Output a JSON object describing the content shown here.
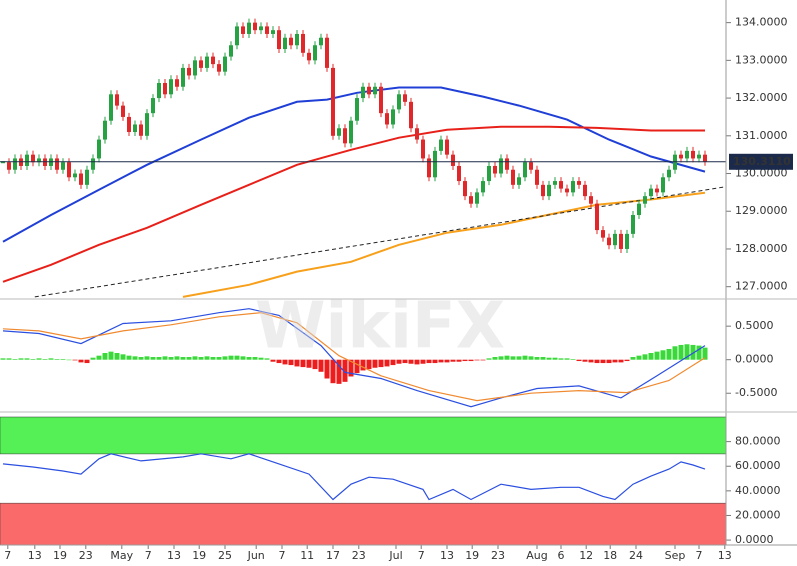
{
  "watermark": "WikiFX",
  "chart_data": [
    {
      "type": "candlestick",
      "xlim": [
        -0.5,
        120.5
      ],
      "ylim": [
        126.7,
        134.6
      ],
      "up_color": "#26a243",
      "down_color": "#e0282a",
      "close": [
        130.3,
        130.1,
        130.4,
        130.2,
        130.5,
        130.3,
        130.4,
        130.2,
        130.4,
        130.1,
        130.3,
        129.9,
        130.0,
        129.7,
        130.1,
        130.4,
        130.9,
        131.4,
        132.1,
        131.8,
        131.5,
        131.1,
        131.3,
        131.0,
        131.6,
        132.0,
        132.4,
        132.1,
        132.5,
        132.3,
        132.8,
        132.6,
        133.0,
        132.8,
        133.1,
        132.9,
        132.7,
        133.1,
        133.4,
        133.9,
        133.7,
        134.0,
        133.8,
        133.9,
        133.7,
        133.8,
        133.3,
        133.6,
        133.4,
        133.7,
        133.2,
        133.0,
        133.4,
        133.6,
        132.8,
        131.0,
        131.2,
        130.8,
        131.4,
        132.0,
        132.3,
        132.1,
        132.3,
        131.6,
        131.3,
        131.7,
        132.1,
        131.9,
        131.2,
        130.9,
        130.4,
        129.9,
        130.6,
        130.9,
        130.5,
        130.2,
        129.8,
        129.4,
        129.2,
        129.5,
        129.8,
        130.2,
        130.0,
        130.4,
        130.1,
        129.7,
        129.9,
        130.3,
        130.1,
        129.7,
        129.4,
        129.7,
        129.8,
        129.6,
        129.5,
        129.8,
        129.7,
        129.4,
        129.2,
        128.5,
        128.3,
        128.1,
        128.4,
        128.0,
        128.4,
        128.9,
        129.2,
        129.4,
        129.6,
        129.5,
        129.9,
        130.1,
        130.5,
        130.4,
        130.6,
        130.4,
        130.5,
        130.311
      ],
      "series": [
        {
          "color": "#1f3fd6",
          "x": [
            0,
            8,
            16,
            24,
            33,
            41,
            49,
            54,
            59,
            66,
            73,
            80,
            86,
            94,
            101,
            108,
            117
          ],
          "values": [
            128.19,
            128.9,
            129.57,
            130.23,
            130.9,
            131.48,
            131.9,
            131.96,
            132.14,
            132.28,
            132.28,
            132.04,
            131.8,
            131.43,
            130.9,
            130.45,
            130.05
          ]
        },
        {
          "color": "#e8201a",
          "x": [
            0,
            8,
            16,
            24,
            33,
            41,
            49,
            58,
            66,
            74,
            83,
            91,
            99,
            108,
            117
          ],
          "values": [
            127.13,
            127.58,
            128.11,
            128.56,
            129.17,
            129.7,
            130.23,
            130.63,
            130.95,
            131.16,
            131.24,
            131.24,
            131.21,
            131.14,
            131.14
          ]
        },
        {
          "color": "#f7a01b",
          "x": [
            30,
            41,
            49,
            58,
            66,
            74,
            83,
            91,
            99,
            108,
            117
          ],
          "values": [
            126.73,
            127.05,
            127.4,
            127.66,
            128.11,
            128.43,
            128.64,
            128.91,
            129.17,
            129.31,
            129.49
          ]
        }
      ],
      "trendline": {
        "x": [
          5.3,
          120.5
        ],
        "values": [
          126.73,
          129.65
        ]
      },
      "price_marker": {
        "value": 130.311,
        "label": "130.3110"
      },
      "yticks": [
        {
          "value": 134,
          "label": "134.0000"
        },
        {
          "value": 133,
          "label": "133.0000"
        },
        {
          "value": 132,
          "label": "132.0000"
        },
        {
          "value": 131,
          "label": "131.0000"
        },
        {
          "value": 130,
          "label": "130.0000"
        },
        {
          "value": 129,
          "label": "129.0000"
        },
        {
          "value": 128,
          "label": "128.0000"
        },
        {
          "value": 127,
          "label": "127.0000"
        }
      ]
    },
    {
      "type": "macd",
      "xlim": [
        -0.5,
        120.5
      ],
      "ylim": [
        -0.72,
        0.89
      ],
      "histogram": [
        0.02,
        0.02,
        0.01,
        0.02,
        0.02,
        0.01,
        0.02,
        0.01,
        0.02,
        0.01,
        0.01,
        0.0,
        -0.01,
        -0.04,
        -0.05,
        0.03,
        0.06,
        0.1,
        0.12,
        0.1,
        0.08,
        0.06,
        0.05,
        0.04,
        0.05,
        0.04,
        0.04,
        0.05,
        0.04,
        0.05,
        0.04,
        0.04,
        0.05,
        0.04,
        0.05,
        0.04,
        0.04,
        0.05,
        0.06,
        0.06,
        0.05,
        0.04,
        0.04,
        0.03,
        0.02,
        -0.03,
        -0.05,
        -0.07,
        -0.08,
        -0.1,
        -0.11,
        -0.12,
        -0.14,
        -0.18,
        -0.28,
        -0.35,
        -0.36,
        -0.33,
        -0.25,
        -0.2,
        -0.16,
        -0.14,
        -0.12,
        -0.11,
        -0.1,
        -0.08,
        -0.06,
        -0.05,
        -0.06,
        -0.07,
        -0.06,
        -0.05,
        -0.05,
        -0.04,
        -0.04,
        -0.03,
        -0.03,
        -0.02,
        -0.02,
        -0.01,
        -0.01,
        0.02,
        0.04,
        0.05,
        0.06,
        0.05,
        0.05,
        0.06,
        0.05,
        0.04,
        0.04,
        0.03,
        0.03,
        0.02,
        0.02,
        0.01,
        -0.02,
        -0.03,
        -0.04,
        -0.05,
        -0.05,
        -0.05,
        -0.04,
        -0.04,
        -0.02,
        0.04,
        0.06,
        0.08,
        0.1,
        0.12,
        0.14,
        0.16,
        0.2,
        0.22,
        0.23,
        0.22,
        0.21,
        0.18
      ],
      "up_color": "#3ad83a",
      "down_color": "#ee1c1c",
      "series": [
        {
          "color": "#2b4fe0",
          "x": [
            0,
            6,
            13,
            20,
            28,
            36,
            41,
            46,
            53,
            57,
            63,
            69,
            78,
            83,
            89,
            96,
            103,
            109,
            117
          ],
          "values": [
            0.43,
            0.39,
            0.24,
            0.54,
            0.58,
            0.7,
            0.76,
            0.66,
            0.21,
            -0.19,
            -0.28,
            -0.46,
            -0.7,
            -0.57,
            -0.43,
            -0.39,
            -0.57,
            -0.24,
            0.21
          ]
        },
        {
          "color": "#f08a30",
          "x": [
            0,
            6,
            13,
            20,
            28,
            36,
            43,
            49,
            56,
            63,
            71,
            79,
            88,
            96,
            104,
            111,
            117
          ],
          "values": [
            0.46,
            0.43,
            0.31,
            0.43,
            0.52,
            0.64,
            0.7,
            0.55,
            0.06,
            -0.24,
            -0.46,
            -0.61,
            -0.5,
            -0.46,
            -0.49,
            -0.31,
            0.03
          ]
        }
      ],
      "yticks": [
        {
          "value": 0.5,
          "label": "0.5000"
        },
        {
          "value": 0,
          "label": "0.0000"
        },
        {
          "value": -0.5,
          "label": "-0.5000"
        }
      ]
    },
    {
      "type": "rsi",
      "xlim": [
        -0.5,
        120.5
      ],
      "ylim": [
        -4,
        100
      ],
      "overbought": 70,
      "oversold": 30,
      "overbought_color": "#55f055",
      "oversold_color": "#fb6a6a",
      "series": [
        {
          "color": "#2b4fe0",
          "x": [
            0,
            5,
            10,
            13,
            16,
            18,
            23,
            30,
            33,
            38,
            41,
            46,
            51,
            55,
            58,
            61,
            65,
            70,
            71,
            75,
            78,
            83,
            88,
            93,
            96,
            100,
            102,
            105,
            108,
            111,
            113,
            115,
            117
          ],
          "values": [
            61.9,
            59.4,
            56.1,
            53.6,
            66,
            70.1,
            64.3,
            67.6,
            70.1,
            66,
            70.1,
            61.9,
            53.6,
            33,
            45.4,
            51.1,
            49.5,
            41.2,
            33,
            41.2,
            33,
            45.4,
            41.2,
            42.9,
            42.9,
            35.5,
            33,
            45.4,
            52,
            57.7,
            63.5,
            61,
            57.7
          ]
        }
      ],
      "yticks": [
        {
          "value": 80,
          "label": "80.0000"
        },
        {
          "value": 60,
          "label": "60.0000"
        },
        {
          "value": 40,
          "label": "40.0000"
        },
        {
          "value": 20,
          "label": "20.0000"
        },
        {
          "value": 0,
          "label": "0.0000"
        }
      ],
      "xticks": [
        {
          "value": 0.8,
          "label": "7"
        },
        {
          "value": 5.3,
          "label": "13"
        },
        {
          "value": 9.5,
          "label": "19"
        },
        {
          "value": 13.8,
          "label": "23"
        },
        {
          "value": 19.8,
          "label": "May"
        },
        {
          "value": 24.2,
          "label": "7"
        },
        {
          "value": 28.5,
          "label": "13"
        },
        {
          "value": 32.7,
          "label": "19"
        },
        {
          "value": 37,
          "label": "25"
        },
        {
          "value": 42.2,
          "label": "Jun"
        },
        {
          "value": 46.5,
          "label": "7"
        },
        {
          "value": 50.7,
          "label": "11"
        },
        {
          "value": 55,
          "label": "17"
        },
        {
          "value": 59.3,
          "label": "23"
        },
        {
          "value": 65.5,
          "label": "Jul"
        },
        {
          "value": 69.7,
          "label": "7"
        },
        {
          "value": 74,
          "label": "13"
        },
        {
          "value": 78.2,
          "label": "19"
        },
        {
          "value": 82.5,
          "label": "23"
        },
        {
          "value": 89,
          "label": "Aug"
        },
        {
          "value": 93,
          "label": "6"
        },
        {
          "value": 97.2,
          "label": "12"
        },
        {
          "value": 101.2,
          "label": "18"
        },
        {
          "value": 105.5,
          "label": "24"
        },
        {
          "value": 112,
          "label": "Sep"
        },
        {
          "value": 116,
          "label": "7"
        },
        {
          "value": 120.3,
          "label": "13"
        }
      ]
    }
  ]
}
